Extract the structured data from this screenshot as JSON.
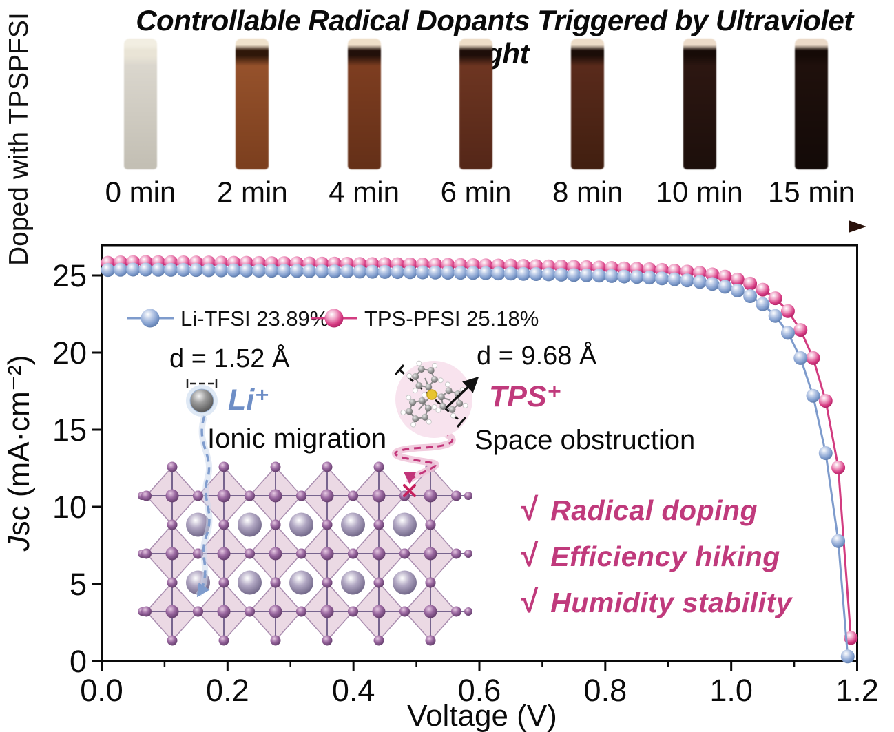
{
  "side_label": "Doped with TPSPFSI",
  "title": "Controllable Radical Dopants Triggered by Ultraviolet Light",
  "vials": [
    {
      "label": "0 min",
      "meniscus": "#f2eee2",
      "neck": "#e9e4d6",
      "body_top": "#dad6cd",
      "body_bottom": "#c3bfb4"
    },
    {
      "label": "2 min",
      "meniscus": "#f0e2cc",
      "neck": "#2f1709",
      "body_top": "#95512b",
      "body_bottom": "#7c3f1e"
    },
    {
      "label": "4 min",
      "meniscus": "#efdfc9",
      "neck": "#22100a",
      "body_top": "#7d3d20",
      "body_bottom": "#653018"
    },
    {
      "label": "6 min",
      "meniscus": "#eeddc8",
      "neck": "#1e0e09",
      "body_top": "#6d3521",
      "body_bottom": "#552718"
    },
    {
      "label": "8 min",
      "meniscus": "#eddcc8",
      "neck": "#1b0d08",
      "body_top": "#592a1b",
      "body_bottom": "#421f10"
    },
    {
      "label": "10 min",
      "meniscus": "#ecdbc9",
      "neck": "#170b07",
      "body_top": "#2c1611",
      "body_bottom": "#1d0f0b"
    },
    {
      "label": "15 min",
      "meniscus": "#ebdac8",
      "neck": "#150a06",
      "body_top": "#1f100c",
      "body_bottom": "#130a07"
    }
  ],
  "time_arrow_colors": {
    "start": "#f5efe7",
    "mid": "#8a5f45",
    "end": "#2a120b"
  },
  "chart_data": {
    "type": "line",
    "xlabel": "Voltage (V)",
    "ylabel": "Jsc (mA·cm⁻²)",
    "ylabel_parts": {
      "italic": "J",
      "rest": "sc (mA·cm⁻²)"
    },
    "xlim": [
      0,
      1.2
    ],
    "ylim": [
      0,
      27
    ],
    "x_ticks": [
      0.0,
      0.2,
      0.4,
      0.6,
      0.8,
      1.0,
      1.2
    ],
    "x_tick_labels": [
      "0.0",
      "0.2",
      "0.4",
      "0.6",
      "0.8",
      "1.0",
      "1.2"
    ],
    "x_minor_ticks": [
      0.1,
      0.3,
      0.5,
      0.7,
      0.9,
      1.1
    ],
    "y_ticks": [
      0,
      5,
      10,
      15,
      20,
      25
    ],
    "y_tick_labels": [
      "0",
      "5",
      "10",
      "15",
      "20",
      "25"
    ],
    "grid": false,
    "legend_position": "upper-left-inside",
    "series": [
      {
        "name": "TPS-PFSI 25.18%",
        "color": "#d23c80",
        "sphere_stops": [
          "#ffffff",
          "#f0a2c6",
          "#d63a82",
          "#a21d5c"
        ],
        "x": [
          0.01,
          0.03,
          0.05,
          0.07,
          0.09,
          0.11,
          0.13,
          0.15,
          0.17,
          0.19,
          0.21,
          0.23,
          0.25,
          0.27,
          0.29,
          0.31,
          0.33,
          0.35,
          0.37,
          0.39,
          0.41,
          0.43,
          0.45,
          0.47,
          0.49,
          0.51,
          0.53,
          0.55,
          0.57,
          0.59,
          0.61,
          0.63,
          0.65,
          0.67,
          0.69,
          0.71,
          0.73,
          0.75,
          0.77,
          0.79,
          0.81,
          0.83,
          0.85,
          0.87,
          0.89,
          0.91,
          0.93,
          0.95,
          0.97,
          0.99,
          1.01,
          1.03,
          1.05,
          1.07,
          1.09,
          1.11,
          1.13,
          1.15,
          1.17,
          1.19
        ],
        "y": [
          25.82,
          25.85,
          25.86,
          25.87,
          25.86,
          25.86,
          25.85,
          25.84,
          25.84,
          25.83,
          25.82,
          25.82,
          25.81,
          25.8,
          25.8,
          25.79,
          25.78,
          25.77,
          25.77,
          25.76,
          25.75,
          25.74,
          25.74,
          25.73,
          25.72,
          25.71,
          25.7,
          25.69,
          25.68,
          25.67,
          25.66,
          25.65,
          25.64,
          25.62,
          25.61,
          25.59,
          25.58,
          25.56,
          25.54,
          25.52,
          25.49,
          25.46,
          25.43,
          25.4,
          25.36,
          25.31,
          25.25,
          25.17,
          25.07,
          24.93,
          24.74,
          24.47,
          24.08,
          23.52,
          22.69,
          21.47,
          19.65,
          16.87,
          12.55,
          1.5
        ]
      },
      {
        "name": "Li-TFSI 23.89%",
        "color": "#7e9bcc",
        "sphere_stops": [
          "#ffffff",
          "#b9c9e6",
          "#7e9bcc",
          "#54719f"
        ],
        "x": [
          0.01,
          0.03,
          0.05,
          0.07,
          0.09,
          0.11,
          0.13,
          0.15,
          0.17,
          0.19,
          0.21,
          0.23,
          0.25,
          0.27,
          0.29,
          0.31,
          0.33,
          0.35,
          0.37,
          0.39,
          0.41,
          0.43,
          0.45,
          0.47,
          0.49,
          0.51,
          0.53,
          0.55,
          0.57,
          0.59,
          0.61,
          0.63,
          0.65,
          0.67,
          0.69,
          0.71,
          0.73,
          0.75,
          0.77,
          0.79,
          0.81,
          0.83,
          0.85,
          0.87,
          0.89,
          0.91,
          0.93,
          0.95,
          0.97,
          0.99,
          1.01,
          1.03,
          1.05,
          1.07,
          1.09,
          1.11,
          1.13,
          1.15,
          1.17,
          1.185
        ],
        "y": [
          25.35,
          25.37,
          25.38,
          25.38,
          25.37,
          25.36,
          25.36,
          25.35,
          25.34,
          25.33,
          25.33,
          25.32,
          25.31,
          25.3,
          25.3,
          25.29,
          25.28,
          25.27,
          25.26,
          25.26,
          25.25,
          25.24,
          25.23,
          25.22,
          25.21,
          25.2,
          25.19,
          25.18,
          25.17,
          25.16,
          25.15,
          25.13,
          25.12,
          25.1,
          25.09,
          25.07,
          25.05,
          25.03,
          25.01,
          24.99,
          24.96,
          24.93,
          24.9,
          24.86,
          24.81,
          24.75,
          24.68,
          24.58,
          24.45,
          24.27,
          24.02,
          23.66,
          23.14,
          22.38,
          21.28,
          19.65,
          17.2,
          13.48,
          7.78,
          0.3
        ]
      }
    ],
    "legend_order": [
      1,
      0
    ]
  },
  "annotations": {
    "li_distance": "d = 1.52 Å",
    "li_ion": "Li⁺",
    "li_ion_color": "#6e8ec6",
    "li_mechanism": "Ionic migration",
    "tps_distance": "d = 9.68 Å",
    "tps_ion": "TPS⁺",
    "tps_ion_color": "#c03a7c",
    "tps_mechanism": "Space obstruction"
  },
  "checklist": {
    "check": "√",
    "color": "#c03a7c",
    "items": [
      "Radical doping",
      "Efficiency hiking",
      "Humidity stability"
    ]
  },
  "palette": {
    "lattice_diamond": "#e9d6e2",
    "lattice_diamond_stroke": "#a98daf",
    "lattice_line": "#77648e",
    "blocked_cross": "#c6215e",
    "axis": "#0a0a0a"
  }
}
